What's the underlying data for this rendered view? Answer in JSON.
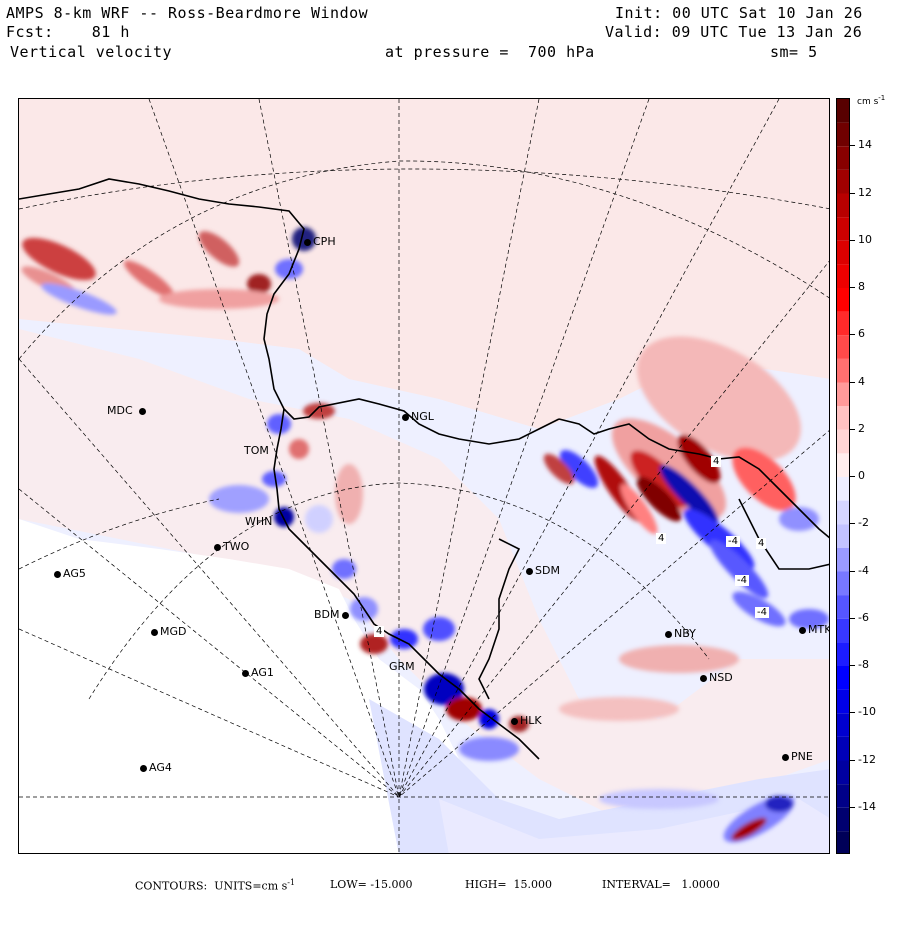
{
  "header": {
    "title": "AMPS 8-km WRF -- Ross-Beardmore Window",
    "fcst": "Fcst:    81 h",
    "variable": "Vertical velocity",
    "pressure": "at pressure =  700 hPa",
    "init": "Init: 00 UTC Sat 10 Jan 26",
    "valid": "Valid: 09 UTC Tue 13 Jan 26",
    "smoothing": "sm= 5"
  },
  "colorbar": {
    "units": "cm s",
    "units_exp": "-1",
    "ticks": [
      "14",
      "12",
      "10",
      "8",
      "6",
      "4",
      "2",
      "0",
      "-2",
      "-4",
      "-6",
      "-8",
      "-10",
      "-12",
      "-14"
    ],
    "min": -16,
    "max": 16,
    "colors_positive": [
      "#ffeeee",
      "#ffd6d6",
      "#ffc2c2",
      "#ff9a9a",
      "#ff7070",
      "#ff4a4a",
      "#ff2a2a",
      "#ff0000",
      "#ee0000",
      "#dd0000",
      "#cc0000",
      "#b80000",
      "#a00000",
      "#880000",
      "#700000",
      "#580000"
    ],
    "colors_negative": [
      "#eeeeff",
      "#d6d6ff",
      "#c2c2ff",
      "#9a9aff",
      "#7878ff",
      "#5656ff",
      "#3838ff",
      "#1c1cff",
      "#0000ff",
      "#0000e8",
      "#0000d0",
      "#0000b8",
      "#0000a0",
      "#000088",
      "#000070",
      "#000058"
    ]
  },
  "stations": [
    {
      "id": "CPH",
      "label": "CPH"
    },
    {
      "id": "MDC",
      "label": "MDC"
    },
    {
      "id": "NGL",
      "label": "NGL"
    },
    {
      "id": "TOM",
      "label": "TOM"
    },
    {
      "id": "WHN",
      "label": "WHN"
    },
    {
      "id": "TWO",
      "label": "TWO"
    },
    {
      "id": "AG5",
      "label": "AG5"
    },
    {
      "id": "SDM",
      "label": "SDM"
    },
    {
      "id": "BDM",
      "label": "BDM"
    },
    {
      "id": "MGD",
      "label": "MGD"
    },
    {
      "id": "GRM",
      "label": "GRM"
    },
    {
      "id": "AG1",
      "label": "AG1"
    },
    {
      "id": "NBY",
      "label": "NBY"
    },
    {
      "id": "MTK",
      "label": "MTK"
    },
    {
      "id": "NSD",
      "label": "NSD"
    },
    {
      "id": "HLK",
      "label": "HLK"
    },
    {
      "id": "PNE",
      "label": "PNE"
    },
    {
      "id": "AG4",
      "label": "AG4"
    }
  ],
  "contour_labels": [
    "4",
    "4",
    "4",
    "-4",
    "4",
    "-4",
    "-4"
  ],
  "footer": {
    "contours": "CONTOURS:  UNITS=cm s",
    "units_exp": "-1",
    "low": "LOW= -15.000",
    "high": "HIGH=  15.000",
    "interval": "INTERVAL=   1.0000"
  }
}
